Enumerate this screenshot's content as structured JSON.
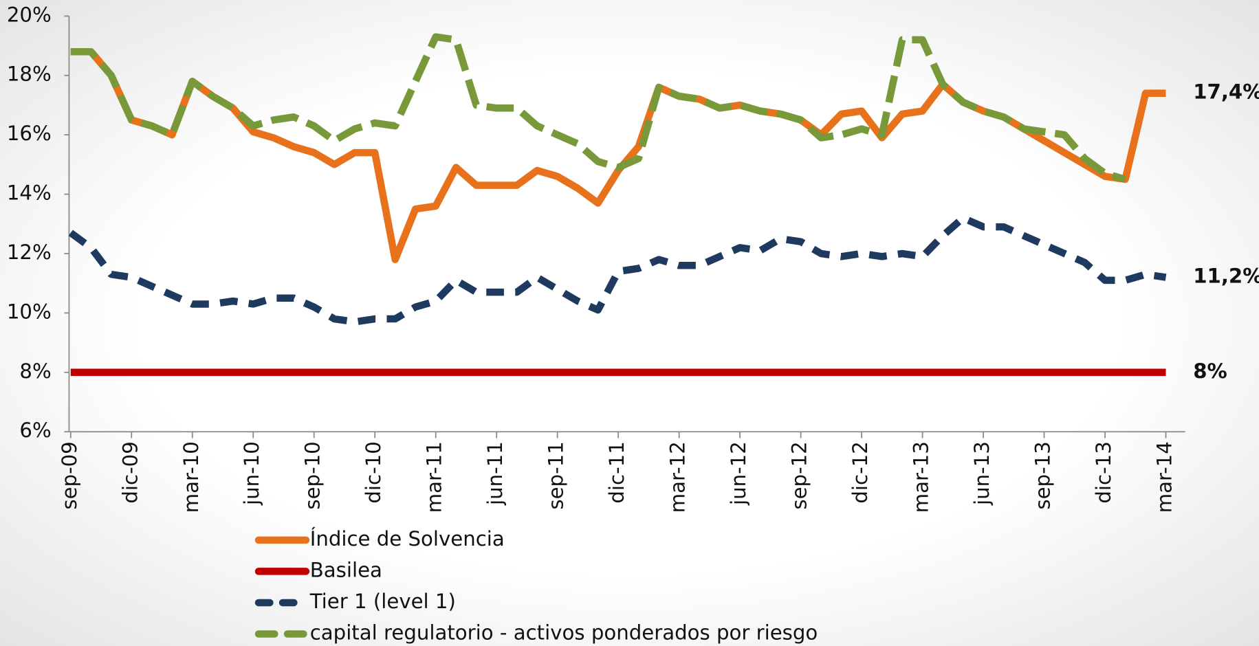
{
  "chart_data": {
    "type": "line",
    "categories": [
      "sep-09",
      null,
      null,
      "dic-09",
      null,
      null,
      "mar-10",
      null,
      null,
      "jun-10",
      null,
      null,
      "sep-10",
      null,
      null,
      "dic-10",
      null,
      null,
      "mar-11",
      null,
      null,
      "jun-11",
      null,
      null,
      "sep-11",
      null,
      null,
      "dic-11",
      null,
      null,
      "mar-12",
      null,
      null,
      "jun-12",
      null,
      null,
      "sep-12",
      null,
      null,
      "dic-12",
      null,
      null,
      "mar-13",
      null,
      null,
      "jun-13",
      null,
      null,
      "sep-13",
      null,
      null,
      "dic-13",
      null,
      null,
      "mar-14"
    ],
    "series": [
      {
        "name": "Índice de Solvencia",
        "color": "#e8711b",
        "dash": "solid",
        "end_label": "17,4%",
        "values": [
          18.8,
          18.8,
          18.0,
          16.5,
          16.3,
          16.0,
          17.8,
          17.3,
          16.9,
          16.1,
          15.9,
          15.6,
          15.4,
          15.0,
          15.4,
          15.4,
          11.8,
          13.5,
          13.6,
          14.9,
          14.3,
          14.3,
          14.3,
          14.8,
          14.6,
          14.2,
          13.7,
          14.8,
          15.6,
          17.6,
          17.3,
          17.2,
          16.9,
          17.0,
          16.8,
          16.7,
          16.5,
          16.0,
          16.7,
          16.8,
          15.9,
          16.7,
          16.8,
          17.7,
          17.1,
          16.8,
          16.6,
          16.2,
          15.8,
          15.4,
          15.0,
          14.6,
          14.5,
          17.4,
          17.4
        ]
      },
      {
        "name": "Basilea",
        "color": "#c00000",
        "dash": "solid",
        "end_label": "8%",
        "values": [
          8,
          8,
          8,
          8,
          8,
          8,
          8,
          8,
          8,
          8,
          8,
          8,
          8,
          8,
          8,
          8,
          8,
          8,
          8,
          8,
          8,
          8,
          8,
          8,
          8,
          8,
          8,
          8,
          8,
          8,
          8,
          8,
          8,
          8,
          8,
          8,
          8,
          8,
          8,
          8,
          8,
          8,
          8,
          8,
          8,
          8,
          8,
          8,
          8,
          8,
          8,
          8,
          8,
          8,
          8
        ]
      },
      {
        "name": "Tier 1 (level 1)",
        "color": "#1f3a5f",
        "dash": "short",
        "end_label": "11,2%",
        "values": [
          12.7,
          12.2,
          11.3,
          11.2,
          10.9,
          10.6,
          10.3,
          10.3,
          10.4,
          10.3,
          10.5,
          10.5,
          10.2,
          9.8,
          9.7,
          9.8,
          9.8,
          10.2,
          10.4,
          11.1,
          10.7,
          10.7,
          10.7,
          11.2,
          10.8,
          10.4,
          10.1,
          11.4,
          11.5,
          11.8,
          11.6,
          11.6,
          11.9,
          12.2,
          12.1,
          12.5,
          12.4,
          12.0,
          11.9,
          12.0,
          11.9,
          12.0,
          11.9,
          12.6,
          13.2,
          12.9,
          12.9,
          12.6,
          12.3,
          12.0,
          11.7,
          11.1,
          11.1,
          11.3,
          11.2
        ]
      },
      {
        "name": "capital regulatorio - activos ponderados por riesgo",
        "color": "#77993a",
        "dash": "long",
        "values": [
          18.8,
          18.8,
          18.0,
          16.5,
          16.3,
          16.0,
          17.8,
          17.3,
          16.9,
          16.3,
          16.5,
          16.6,
          16.3,
          15.8,
          16.2,
          16.4,
          16.3,
          17.8,
          19.3,
          19.2,
          17.0,
          16.9,
          16.9,
          16.3,
          16.0,
          15.7,
          15.1,
          14.9,
          15.2,
          17.6,
          17.3,
          17.2,
          16.9,
          17.0,
          16.8,
          16.7,
          16.5,
          15.9,
          16.0,
          16.2,
          16.0,
          19.2,
          19.2,
          17.7,
          17.1,
          16.8,
          16.6,
          16.2,
          16.1,
          16.0,
          15.2,
          14.7,
          14.5,
          null,
          null
        ]
      }
    ],
    "ylim": [
      6,
      20
    ],
    "yticks": [
      {
        "value": 6,
        "label": "6%"
      },
      {
        "value": 8,
        "label": "8%"
      },
      {
        "value": 10,
        "label": "10%"
      },
      {
        "value": 12,
        "label": "12%"
      },
      {
        "value": 14,
        "label": "14%"
      },
      {
        "value": 16,
        "label": "16%"
      },
      {
        "value": 18,
        "label": "18%"
      },
      {
        "value": 20,
        "label": "20%"
      }
    ],
    "legend": "bottom"
  }
}
